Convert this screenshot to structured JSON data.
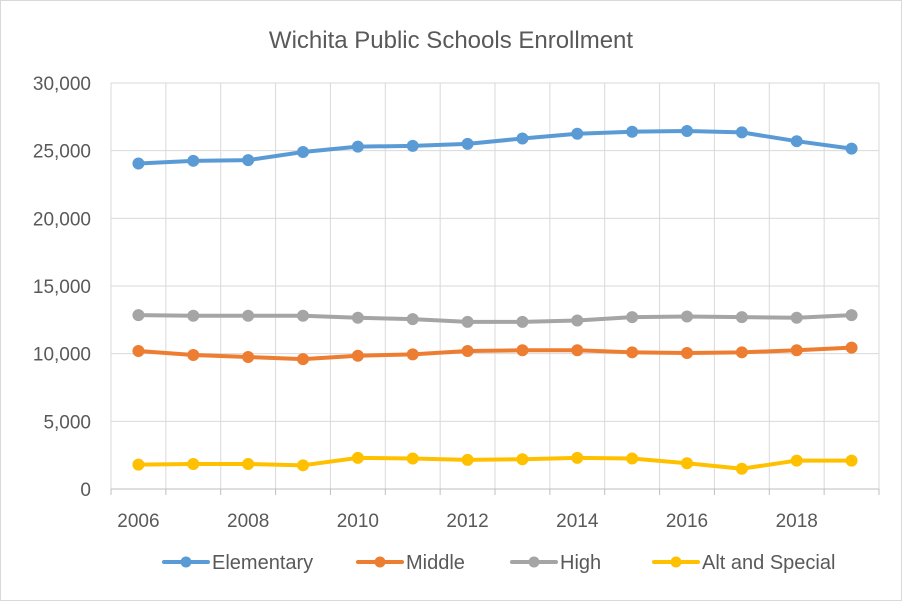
{
  "chart_data": {
    "type": "line",
    "title": "Wichita Public Schools Enrollment",
    "x": [
      2006,
      2007,
      2008,
      2009,
      2010,
      2011,
      2012,
      2013,
      2014,
      2015,
      2016,
      2017,
      2018,
      2019
    ],
    "x_tick_labels": [
      "2006",
      "2008",
      "2010",
      "2012",
      "2014",
      "2016",
      "2018"
    ],
    "y_tick_labels": [
      "0",
      "5,000",
      "10,000",
      "15,000",
      "20,000",
      "25,000",
      "30,000"
    ],
    "ylim": [
      0,
      30000
    ],
    "y_ticks": [
      0,
      5000,
      10000,
      15000,
      20000,
      25000,
      30000
    ],
    "grid": true,
    "legend_position": "bottom",
    "series": [
      {
        "name": "Elementary",
        "color": "#5b9bd5",
        "values": [
          24050,
          24250,
          24300,
          24900,
          25300,
          25350,
          25500,
          25900,
          26250,
          26400,
          26450,
          26350,
          25700,
          25150
        ]
      },
      {
        "name": "Middle",
        "color": "#ed7d31",
        "values": [
          10200,
          9900,
          9750,
          9600,
          9850,
          9950,
          10200,
          10250,
          10250,
          10100,
          10050,
          10100,
          10250,
          10450
        ]
      },
      {
        "name": "High",
        "color": "#a5a5a5",
        "values": [
          12850,
          12800,
          12800,
          12800,
          12650,
          12550,
          12350,
          12350,
          12450,
          12700,
          12750,
          12700,
          12650,
          12850
        ]
      },
      {
        "name": "Alt and Special",
        "color": "#ffc000",
        "values": [
          1800,
          1850,
          1850,
          1750,
          2300,
          2250,
          2150,
          2200,
          2300,
          2250,
          1900,
          1500,
          2100,
          2100
        ]
      }
    ]
  }
}
